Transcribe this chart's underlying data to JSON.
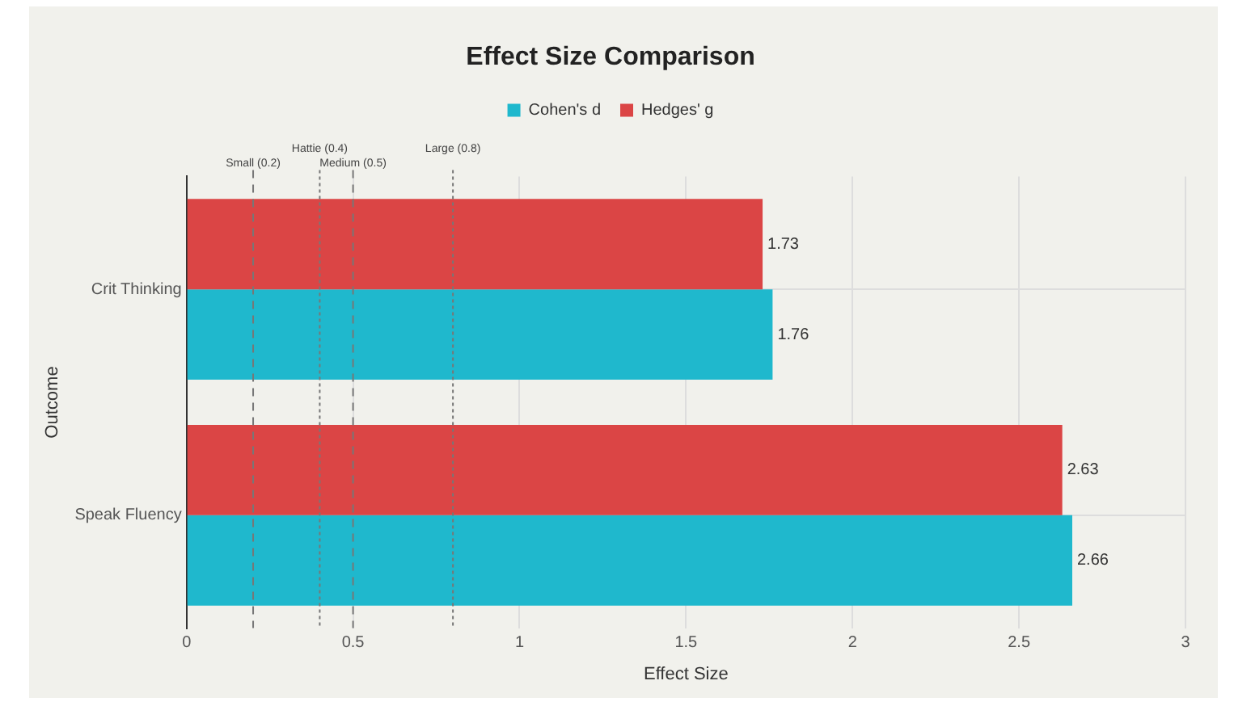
{
  "chart_data": {
    "type": "bar",
    "orientation": "horizontal",
    "title": "Effect Size Comparison",
    "xlabel": "Effect Size",
    "ylabel": "Outcome",
    "categories": [
      "Crit Thinking",
      "Speak Fluency"
    ],
    "series": [
      {
        "name": "Cohen's d",
        "color": "#1fb8cd",
        "values": [
          1.76,
          2.66
        ]
      },
      {
        "name": "Hedges' g",
        "color": "#db4545",
        "values": [
          1.73,
          2.63
        ]
      }
    ],
    "xlim": [
      0,
      3
    ],
    "xticks": [
      0,
      0.5,
      1,
      1.5,
      2,
      2.5,
      3
    ],
    "ref_lines": [
      {
        "axis": "x",
        "value": 0.2,
        "label": "Small (0.2)",
        "line_style": "dashed"
      },
      {
        "axis": "x",
        "value": 0.4,
        "label": "Hattie (0.4)",
        "line_style": "dotted"
      },
      {
        "axis": "x",
        "value": 0.5,
        "label": "Medium (0.5)",
        "line_style": "dashed"
      },
      {
        "axis": "x",
        "value": 0.8,
        "label": "Large (0.8)",
        "line_style": "dotted"
      }
    ],
    "grid": true,
    "legend": "top",
    "data_labels": true
  }
}
